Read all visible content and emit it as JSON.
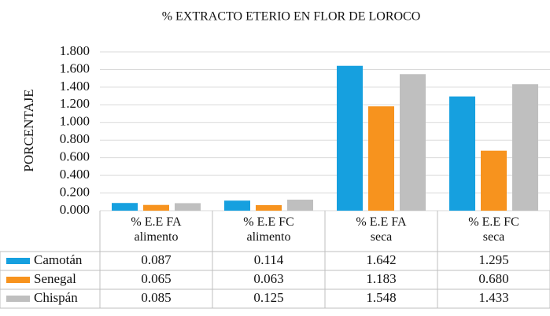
{
  "chart_data": {
    "type": "bar",
    "title": "% EXTRACTO ETERIO EN FLOR DE LOROCO",
    "y_label": "PORCENTAJE",
    "categories": [
      "% E.E FA alimento",
      "% E.E FC alimento",
      "% E.E FA seca",
      "% E.E FC seca"
    ],
    "series": [
      {
        "name": "Camotán",
        "color": "#16a0df",
        "values": [
          0.087,
          0.114,
          1.642,
          1.295
        ],
        "value_labels": [
          "0.087",
          "0.114",
          "1.642",
          "1.295"
        ]
      },
      {
        "name": "Senegal",
        "color": "#f7931e",
        "values": [
          0.065,
          0.063,
          1.183,
          0.68
        ],
        "value_labels": [
          "0.065",
          "0.063",
          "1.183",
          "0.680"
        ]
      },
      {
        "name": "Chispán",
        "color": "#bfbfbf",
        "values": [
          0.085,
          0.125,
          1.548,
          1.433
        ],
        "value_labels": [
          "0.085",
          "0.125",
          "1.548",
          "1.433"
        ]
      }
    ],
    "ylim": [
      0,
      1.8
    ],
    "yticks": [
      {
        "value": 0,
        "label": "0.000"
      },
      {
        "value": 0.2,
        "label": "0.200"
      },
      {
        "value": 0.4,
        "label": "0.400"
      },
      {
        "value": 0.6,
        "label": "0.600"
      },
      {
        "value": 0.8,
        "label": "0.800"
      },
      {
        "value": 1.0,
        "label": "1.000"
      },
      {
        "value": 1.2,
        "label": "1.200"
      },
      {
        "value": 1.4,
        "label": "1.400"
      },
      {
        "value": 1.6,
        "label": "1.600"
      },
      {
        "value": 1.8,
        "label": "1.800"
      }
    ],
    "grid": true
  }
}
